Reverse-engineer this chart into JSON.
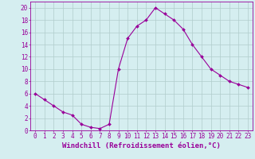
{
  "x": [
    0,
    1,
    2,
    3,
    4,
    5,
    6,
    7,
    8,
    9,
    10,
    11,
    12,
    13,
    14,
    15,
    16,
    17,
    18,
    19,
    20,
    21,
    22,
    23
  ],
  "y": [
    6,
    5,
    4,
    3,
    2.5,
    1,
    0.5,
    0.3,
    1,
    10,
    15,
    17,
    18,
    20,
    19,
    18,
    16.5,
    14,
    12,
    10,
    9,
    8,
    7.5,
    7
  ],
  "line_color": "#990099",
  "marker": "D",
  "marker_size": 2.0,
  "bg_color": "#d5eef0",
  "grid_color": "#b0cccc",
  "xlabel": "Windchill (Refroidissement éolien,°C)",
  "xlabel_fontsize": 6.5,
  "xtick_fontsize": 5.5,
  "ytick_fontsize": 5.5,
  "ylim": [
    0,
    21
  ],
  "xlim": [
    -0.5,
    23.5
  ],
  "yticks": [
    0,
    2,
    4,
    6,
    8,
    10,
    12,
    14,
    16,
    18,
    20
  ],
  "xticks": [
    0,
    1,
    2,
    3,
    4,
    5,
    6,
    7,
    8,
    9,
    10,
    11,
    12,
    13,
    14,
    15,
    16,
    17,
    18,
    19,
    20,
    21,
    22,
    23
  ]
}
